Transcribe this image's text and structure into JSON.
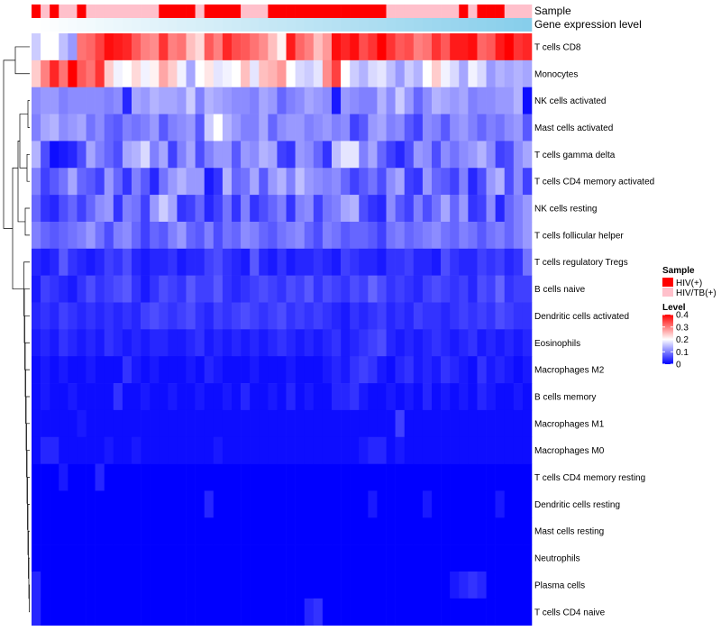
{
  "chart_data": {
    "type": "heatmap",
    "annotations": {
      "sample_label": "Sample",
      "expression_label": "Gene expression level",
      "sample_groups": [
        0,
        1,
        0,
        1,
        1,
        0,
        1,
        1,
        1,
        1,
        1,
        1,
        1,
        1,
        0,
        0,
        0,
        0,
        1,
        0,
        0,
        0,
        0,
        1,
        1,
        1,
        0,
        0,
        0,
        0,
        0,
        0,
        0,
        0,
        0,
        0,
        0,
        0,
        0,
        1,
        1,
        1,
        1,
        1,
        1,
        1,
        1,
        0,
        1,
        0,
        0,
        0,
        1,
        1,
        1
      ],
      "expression_gradient": [
        "#ffffff",
        "#87ceeb"
      ]
    },
    "rows": [
      "T cells CD8",
      "Monocytes",
      "NK cells activated",
      "Mast cells activated",
      "T cells gamma delta",
      "T cells CD4 memory activated",
      "NK cells resting",
      "T cells follicular helper",
      "T cells regulatory  Tregs",
      "B cells naive",
      "Dendritic cells activated",
      "Eosinophils",
      "Macrophages M2",
      "B cells memory",
      "Macrophages M1",
      "Macrophages M0",
      "T cells CD4 memory resting",
      "Dendritic cells resting",
      "Mast cells resting",
      "Neutrophils",
      "Plasma cells",
      "T cells CD4 naive"
    ],
    "n_columns": 55,
    "row_levels": [
      [
        0.16,
        0.2,
        0.2,
        0.15,
        0.12,
        0.31,
        0.32,
        0.35,
        0.39,
        0.38,
        0.37,
        0.33,
        0.3,
        0.29,
        0.36,
        0.3,
        0.31,
        0.25,
        0.23,
        0.33,
        0.3,
        0.37,
        0.34,
        0.33,
        0.31,
        0.29,
        0.25,
        0.21,
        0.38,
        0.32,
        0.3,
        0.25,
        0.28,
        0.39,
        0.37,
        0.39,
        0.34,
        0.36,
        0.4,
        0.36,
        0.33,
        0.34,
        0.3,
        0.31,
        0.36,
        0.33,
        0.38,
        0.38,
        0.39,
        0.32,
        0.33,
        0.38,
        0.4,
        0.36,
        0.37
      ],
      [
        0.24,
        0.3,
        0.37,
        0.31,
        0.42,
        0.33,
        0.31,
        0.36,
        0.24,
        0.19,
        0.2,
        0.23,
        0.19,
        0.21,
        0.27,
        0.24,
        0.19,
        0.13,
        0.2,
        0.22,
        0.18,
        0.19,
        0.2,
        0.25,
        0.18,
        0.25,
        0.26,
        0.28,
        0.2,
        0.17,
        0.16,
        0.18,
        0.29,
        0.35,
        0.2,
        0.16,
        0.14,
        0.17,
        0.18,
        0.15,
        0.12,
        0.16,
        0.14,
        0.2,
        0.24,
        0.19,
        0.17,
        0.13,
        0.19,
        0.17,
        0.12,
        0.14,
        0.13,
        0.14,
        0.13
      ],
      [
        0.11,
        0.12,
        0.12,
        0.1,
        0.11,
        0.11,
        0.11,
        0.11,
        0.1,
        0.11,
        0.03,
        0.13,
        0.12,
        0.14,
        0.13,
        0.13,
        0.12,
        0.16,
        0.1,
        0.14,
        0.13,
        0.12,
        0.11,
        0.11,
        0.1,
        0.13,
        0.12,
        0.08,
        0.1,
        0.11,
        0.13,
        0.12,
        0.11,
        0.02,
        0.12,
        0.11,
        0.1,
        0.1,
        0.14,
        0.11,
        0.16,
        0.12,
        0.08,
        0.11,
        0.14,
        0.13,
        0.12,
        0.13,
        0.1,
        0.11,
        0.11,
        0.12,
        0.12,
        0.14,
        0.01
      ],
      [
        0.1,
        0.13,
        0.14,
        0.11,
        0.12,
        0.13,
        0.09,
        0.11,
        0.08,
        0.07,
        0.1,
        0.09,
        0.1,
        0.12,
        0.07,
        0.1,
        0.11,
        0.12,
        0.07,
        0.16,
        0.2,
        0.14,
        0.12,
        0.1,
        0.1,
        0.13,
        0.08,
        0.11,
        0.12,
        0.12,
        0.1,
        0.11,
        0.12,
        0.1,
        0.11,
        0.05,
        0.07,
        0.12,
        0.13,
        0.1,
        0.11,
        0.07,
        0.05,
        0.11,
        0.1,
        0.07,
        0.11,
        0.12,
        0.1,
        0.08,
        0.1,
        0.09,
        0.11,
        0.12,
        0.07
      ],
      [
        0.14,
        0.06,
        0.01,
        0.02,
        0.03,
        0.06,
        0.13,
        0.1,
        0.08,
        0.06,
        0.13,
        0.14,
        0.17,
        0.1,
        0.13,
        0.05,
        0.1,
        0.13,
        0.06,
        0.1,
        0.12,
        0.12,
        0.07,
        0.12,
        0.11,
        0.14,
        0.13,
        0.05,
        0.04,
        0.12,
        0.11,
        0.08,
        0.04,
        0.15,
        0.18,
        0.18,
        0.1,
        0.13,
        0.08,
        0.05,
        0.03,
        0.06,
        0.12,
        0.11,
        0.06,
        0.11,
        0.09,
        0.11,
        0.12,
        0.14,
        0.11,
        0.05,
        0.06,
        0.11,
        0.13
      ],
      [
        0.1,
        0.05,
        0.07,
        0.09,
        0.13,
        0.08,
        0.07,
        0.05,
        0.12,
        0.08,
        0.04,
        0.1,
        0.07,
        0.03,
        0.09,
        0.12,
        0.14,
        0.12,
        0.12,
        0.02,
        0.04,
        0.14,
        0.08,
        0.09,
        0.13,
        0.07,
        0.12,
        0.14,
        0.1,
        0.15,
        0.12,
        0.11,
        0.1,
        0.11,
        0.08,
        0.05,
        0.07,
        0.09,
        0.06,
        0.11,
        0.13,
        0.05,
        0.04,
        0.12,
        0.08,
        0.07,
        0.05,
        0.1,
        0.03,
        0.06,
        0.12,
        0.14,
        0.06,
        0.11,
        0.05
      ],
      [
        0.08,
        0.04,
        0.03,
        0.06,
        0.08,
        0.05,
        0.08,
        0.11,
        0.12,
        0.04,
        0.1,
        0.09,
        0.05,
        0.12,
        0.16,
        0.13,
        0.04,
        0.05,
        0.08,
        0.03,
        0.05,
        0.09,
        0.04,
        0.1,
        0.04,
        0.06,
        0.08,
        0.1,
        0.04,
        0.1,
        0.11,
        0.05,
        0.09,
        0.1,
        0.13,
        0.14,
        0.06,
        0.04,
        0.03,
        0.11,
        0.07,
        0.05,
        0.1,
        0.06,
        0.09,
        0.13,
        0.08,
        0.12,
        0.04,
        0.05,
        0.11,
        0.03,
        0.08,
        0.1,
        0.12
      ],
      [
        0.1,
        0.08,
        0.07,
        0.08,
        0.09,
        0.1,
        0.12,
        0.09,
        0.06,
        0.1,
        0.11,
        0.08,
        0.05,
        0.08,
        0.07,
        0.1,
        0.12,
        0.08,
        0.07,
        0.1,
        0.06,
        0.09,
        0.08,
        0.11,
        0.1,
        0.08,
        0.07,
        0.09,
        0.1,
        0.11,
        0.08,
        0.06,
        0.1,
        0.09,
        0.07,
        0.08,
        0.08,
        0.07,
        0.05,
        0.09,
        0.1,
        0.08,
        0.09,
        0.1,
        0.11,
        0.09,
        0.08,
        0.1,
        0.09,
        0.07,
        0.09,
        0.1,
        0.08,
        0.1,
        0.12
      ],
      [
        0.03,
        0.02,
        0.03,
        0.07,
        0.04,
        0.03,
        0.02,
        0.03,
        0.05,
        0.04,
        0.06,
        0.03,
        0.02,
        0.03,
        0.03,
        0.04,
        0.02,
        0.03,
        0.03,
        0.05,
        0.06,
        0.04,
        0.03,
        0.02,
        0.07,
        0.03,
        0.02,
        0.04,
        0.02,
        0.03,
        0.03,
        0.04,
        0.03,
        0.02,
        0.05,
        0.04,
        0.03,
        0.03,
        0.02,
        0.04,
        0.04,
        0.05,
        0.03,
        0.03,
        0.02,
        0.06,
        0.04,
        0.03,
        0.03,
        0.05,
        0.04,
        0.05,
        0.03,
        0.04,
        0.09
      ],
      [
        0.02,
        0.05,
        0.04,
        0.03,
        0.02,
        0.04,
        0.06,
        0.04,
        0.05,
        0.06,
        0.07,
        0.04,
        0.02,
        0.04,
        0.06,
        0.05,
        0.04,
        0.07,
        0.05,
        0.05,
        0.07,
        0.04,
        0.03,
        0.04,
        0.05,
        0.06,
        0.05,
        0.04,
        0.06,
        0.05,
        0.07,
        0.04,
        0.06,
        0.05,
        0.04,
        0.06,
        0.05,
        0.08,
        0.06,
        0.04,
        0.05,
        0.04,
        0.03,
        0.05,
        0.06,
        0.05,
        0.04,
        0.05,
        0.03,
        0.06,
        0.05,
        0.08,
        0.04,
        0.05,
        0.05
      ],
      [
        0.03,
        0.04,
        0.03,
        0.05,
        0.04,
        0.03,
        0.04,
        0.03,
        0.04,
        0.03,
        0.04,
        0.03,
        0.05,
        0.06,
        0.05,
        0.04,
        0.05,
        0.06,
        0.04,
        0.03,
        0.05,
        0.04,
        0.05,
        0.06,
        0.05,
        0.04,
        0.05,
        0.06,
        0.04,
        0.05,
        0.04,
        0.05,
        0.04,
        0.03,
        0.02,
        0.04,
        0.03,
        0.04,
        0.05,
        0.03,
        0.04,
        0.03,
        0.05,
        0.04,
        0.04,
        0.03,
        0.04,
        0.05,
        0.04,
        0.05,
        0.04,
        0.06,
        0.05,
        0.04,
        0.04
      ],
      [
        0.02,
        0.03,
        0.02,
        0.04,
        0.03,
        0.02,
        0.03,
        0.02,
        0.04,
        0.03,
        0.02,
        0.03,
        0.02,
        0.03,
        0.03,
        0.02,
        0.02,
        0.03,
        0.04,
        0.02,
        0.03,
        0.02,
        0.03,
        0.02,
        0.03,
        0.02,
        0.03,
        0.04,
        0.03,
        0.02,
        0.03,
        0.02,
        0.03,
        0.04,
        0.02,
        0.03,
        0.04,
        0.05,
        0.06,
        0.03,
        0.02,
        0.03,
        0.02,
        0.03,
        0.04,
        0.03,
        0.02,
        0.03,
        0.04,
        0.02,
        0.03,
        0.02,
        0.03,
        0.02,
        0.03
      ],
      [
        0.01,
        0.02,
        0.01,
        0.02,
        0.01,
        0.01,
        0.02,
        0.01,
        0.01,
        0.01,
        0.04,
        0.02,
        0.01,
        0.02,
        0.01,
        0.01,
        0.01,
        0.02,
        0.01,
        0.03,
        0.02,
        0.01,
        0.01,
        0.01,
        0.02,
        0.01,
        0.01,
        0.01,
        0.02,
        0.01,
        0.01,
        0.01,
        0.02,
        0.03,
        0.02,
        0.04,
        0.05,
        0.04,
        0.02,
        0.01,
        0.03,
        0.04,
        0.02,
        0.03,
        0.02,
        0.04,
        0.03,
        0.02,
        0.01,
        0.04,
        0.02,
        0.03,
        0.02,
        0.01,
        0.02
      ],
      [
        0.01,
        0.02,
        0.01,
        0.01,
        0.02,
        0.01,
        0.01,
        0.01,
        0.01,
        0.04,
        0.01,
        0.01,
        0.02,
        0.01,
        0.01,
        0.02,
        0.01,
        0.01,
        0.02,
        0.01,
        0.01,
        0.02,
        0.01,
        0.03,
        0.01,
        0.01,
        0.02,
        0.01,
        0.03,
        0.01,
        0.02,
        0.01,
        0.01,
        0.03,
        0.03,
        0.04,
        0.02,
        0.01,
        0.01,
        0.02,
        0.01,
        0.02,
        0.01,
        0.03,
        0.01,
        0.02,
        0.01,
        0.02,
        0.01,
        0.03,
        0.02,
        0.01,
        0.01,
        0.02,
        0.01
      ],
      [
        0.01,
        0.01,
        0.01,
        0.01,
        0.01,
        0.02,
        0.01,
        0.01,
        0.01,
        0.01,
        0.01,
        0.01,
        0.01,
        0.01,
        0.01,
        0.01,
        0.01,
        0.01,
        0.01,
        0.01,
        0.01,
        0.01,
        0.01,
        0.01,
        0.01,
        0.01,
        0.01,
        0.01,
        0.01,
        0.01,
        0.01,
        0.01,
        0.01,
        0.01,
        0.01,
        0.01,
        0.01,
        0.01,
        0.01,
        0.01,
        0.05,
        0.01,
        0.01,
        0.01,
        0.01,
        0.01,
        0.01,
        0.01,
        0.01,
        0.01,
        0.01,
        0.01,
        0.01,
        0.01,
        0.01
      ],
      [
        0.01,
        0.03,
        0.03,
        0.01,
        0.01,
        0.01,
        0.01,
        0.01,
        0.02,
        0.01,
        0.01,
        0.02,
        0.01,
        0.01,
        0.01,
        0.01,
        0.01,
        0.01,
        0.01,
        0.01,
        0.02,
        0.01,
        0.01,
        0.01,
        0.01,
        0.01,
        0.01,
        0.01,
        0.01,
        0.01,
        0.01,
        0.01,
        0.01,
        0.01,
        0.01,
        0.01,
        0.02,
        0.03,
        0.03,
        0.01,
        0.02,
        0.01,
        0.01,
        0.01,
        0.01,
        0.01,
        0.01,
        0.01,
        0.01,
        0.01,
        0.01,
        0.01,
        0.01,
        0.01,
        0.01
      ],
      [
        0.0,
        0.0,
        0.0,
        0.02,
        0.0,
        0.0,
        0.0,
        0.03,
        0.0,
        0.0,
        0.0,
        0.0,
        0.0,
        0.0,
        0.0,
        0.0,
        0.0,
        0.0,
        0.0,
        0.0,
        0.0,
        0.0,
        0.0,
        0.0,
        0.0,
        0.0,
        0.0,
        0.0,
        0.0,
        0.0,
        0.0,
        0.0,
        0.0,
        0.0,
        0.0,
        0.0,
        0.0,
        0.0,
        0.0,
        0.0,
        0.0,
        0.0,
        0.0,
        0.0,
        0.0,
        0.0,
        0.0,
        0.0,
        0.0,
        0.0,
        0.0,
        0.0,
        0.0,
        0.0,
        0.0
      ],
      [
        0.0,
        0.0,
        0.0,
        0.0,
        0.0,
        0.0,
        0.0,
        0.0,
        0.0,
        0.0,
        0.0,
        0.0,
        0.0,
        0.0,
        0.0,
        0.0,
        0.0,
        0.0,
        0.0,
        0.03,
        0.0,
        0.0,
        0.0,
        0.0,
        0.0,
        0.0,
        0.0,
        0.0,
        0.0,
        0.0,
        0.0,
        0.0,
        0.0,
        0.0,
        0.0,
        0.0,
        0.0,
        0.02,
        0.0,
        0.0,
        0.0,
        0.0,
        0.0,
        0.02,
        0.0,
        0.0,
        0.0,
        0.0,
        0.0,
        0.0,
        0.0,
        0.02,
        0.0,
        0.0,
        0.0
      ],
      [
        0.0,
        0.0,
        0.0,
        0.0,
        0.0,
        0.0,
        0.0,
        0.0,
        0.0,
        0.0,
        0.0,
        0.0,
        0.0,
        0.0,
        0.0,
        0.0,
        0.0,
        0.0,
        0.0,
        0.0,
        0.0,
        0.0,
        0.0,
        0.0,
        0.0,
        0.0,
        0.0,
        0.0,
        0.0,
        0.0,
        0.0,
        0.0,
        0.0,
        0.0,
        0.0,
        0.0,
        0.0,
        0.0,
        0.0,
        0.0,
        0.0,
        0.0,
        0.0,
        0.0,
        0.0,
        0.0,
        0.0,
        0.0,
        0.0,
        0.0,
        0.0,
        0.0,
        0.0,
        0.0,
        0.0
      ],
      [
        0.0,
        0.0,
        0.0,
        0.0,
        0.0,
        0.0,
        0.0,
        0.0,
        0.0,
        0.0,
        0.0,
        0.0,
        0.0,
        0.0,
        0.0,
        0.0,
        0.0,
        0.0,
        0.0,
        0.0,
        0.0,
        0.0,
        0.0,
        0.0,
        0.0,
        0.0,
        0.0,
        0.0,
        0.0,
        0.0,
        0.0,
        0.0,
        0.0,
        0.0,
        0.0,
        0.0,
        0.0,
        0.0,
        0.0,
        0.0,
        0.0,
        0.0,
        0.0,
        0.0,
        0.0,
        0.0,
        0.0,
        0.0,
        0.0,
        0.0,
        0.0,
        0.0,
        0.0,
        0.0,
        0.0
      ],
      [
        0.03,
        0.0,
        0.0,
        0.0,
        0.0,
        0.0,
        0.0,
        0.0,
        0.0,
        0.0,
        0.0,
        0.0,
        0.0,
        0.0,
        0.0,
        0.0,
        0.0,
        0.0,
        0.0,
        0.0,
        0.0,
        0.0,
        0.0,
        0.0,
        0.0,
        0.0,
        0.0,
        0.0,
        0.0,
        0.0,
        0.0,
        0.0,
        0.0,
        0.0,
        0.0,
        0.0,
        0.0,
        0.0,
        0.0,
        0.0,
        0.0,
        0.0,
        0.0,
        0.0,
        0.0,
        0.0,
        0.02,
        0.03,
        0.04,
        0.03,
        0.0,
        0.0,
        0.0,
        0.0,
        0.0
      ],
      [
        0.03,
        0.0,
        0.0,
        0.0,
        0.0,
        0.0,
        0.0,
        0.0,
        0.0,
        0.0,
        0.0,
        0.0,
        0.0,
        0.0,
        0.0,
        0.0,
        0.0,
        0.0,
        0.0,
        0.0,
        0.0,
        0.0,
        0.0,
        0.0,
        0.0,
        0.0,
        0.0,
        0.0,
        0.0,
        0.0,
        0.03,
        0.04,
        0.0,
        0.0,
        0.0,
        0.0,
        0.0,
        0.0,
        0.0,
        0.0,
        0.0,
        0.0,
        0.0,
        0.0,
        0.0,
        0.0,
        0.0,
        0.0,
        0.0,
        0.0,
        0.0,
        0.0,
        0.0,
        0.0,
        0.0
      ]
    ],
    "legend": {
      "sample_title": "Sample",
      "sample_items": [
        {
          "label": "HIV(+)",
          "color": "#ff0000"
        },
        {
          "label": "HIV/TB(+)",
          "color": "#ffc0cb"
        }
      ],
      "level_title": "Level",
      "level_ticks": [
        "0.4",
        "0.3",
        "0.2",
        "0.1",
        "0"
      ],
      "level_range": [
        0,
        0.4
      ],
      "colors": [
        "#0000ff",
        "#ffffff",
        "#ff0000"
      ]
    }
  }
}
